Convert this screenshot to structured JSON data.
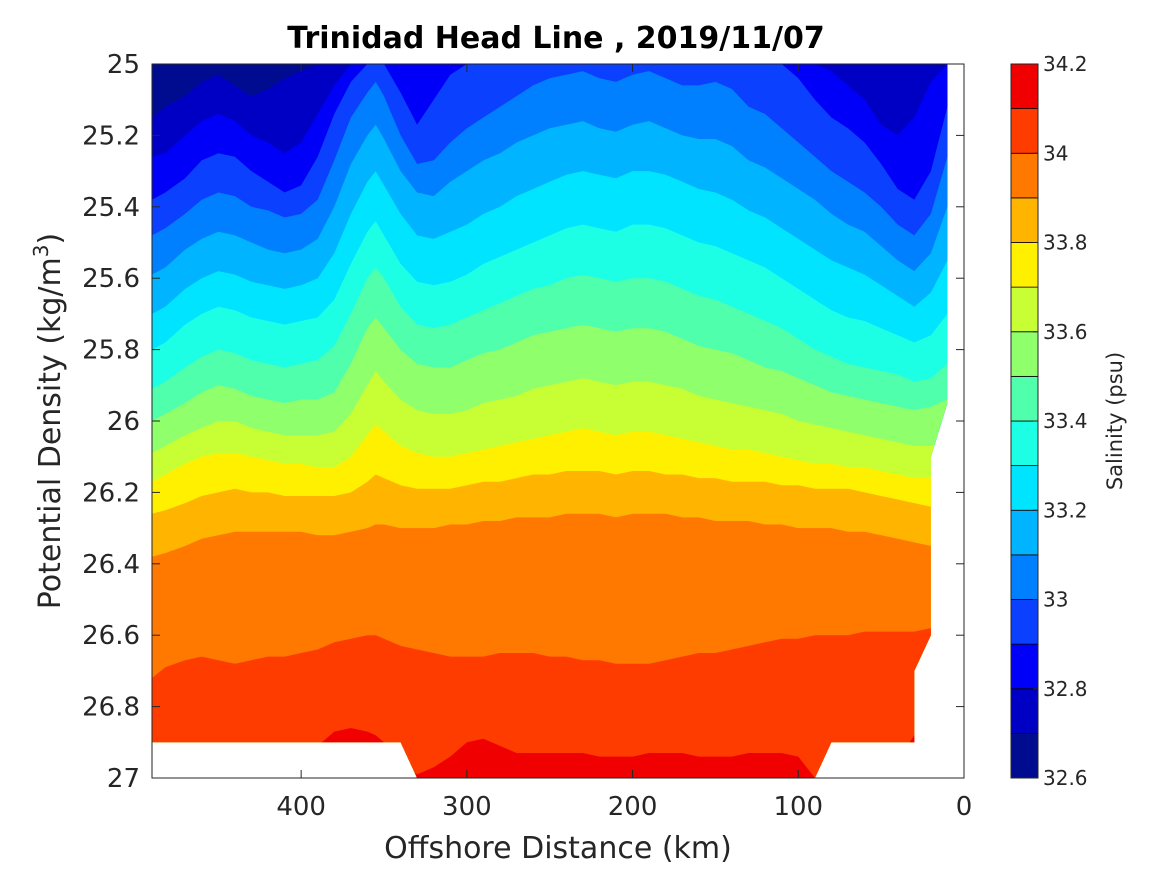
{
  "chart_data": {
    "type": "contourf",
    "title": "Trinidad Head Line , 2019/11/07",
    "xlabel": "Offshore Distance (km)",
    "ylabel": "Potential Density (kg/m",
    "ylabel_sup": "3",
    "ylabel_close": ")",
    "xlim": [
      490,
      0
    ],
    "x_reversed": true,
    "ylim": [
      25,
      27
    ],
    "y_reversed": true,
    "x_ticks": [
      400,
      300,
      200,
      100,
      0
    ],
    "y_ticks": [
      25,
      25.2,
      25.4,
      25.6,
      25.8,
      26,
      26.2,
      26.4,
      26.6,
      26.8,
      27
    ],
    "y_tick_labels": [
      "25",
      "25.2",
      "25.4",
      "25.6",
      "25.8",
      "26",
      "26.2",
      "26.4",
      "26.6",
      "26.8",
      "27"
    ],
    "x_tick_labels": [
      "400",
      "300",
      "200",
      "100",
      "0"
    ],
    "colorbar": {
      "label": "Salinity (psu)",
      "min": 32.6,
      "max": 34.2,
      "ticks": [
        "32.6",
        "32.8",
        "33",
        "33.2",
        "33.4",
        "33.6",
        "33.8",
        "34",
        "34.2"
      ],
      "levels": [
        32.6,
        32.7,
        32.8,
        32.9,
        33.0,
        33.1,
        33.2,
        33.3,
        33.4,
        33.5,
        33.6,
        33.7,
        33.8,
        33.9,
        34.0,
        34.1,
        34.2
      ],
      "colors": [
        "#000c8f",
        "#0000c4",
        "#0000f8",
        "#0c40ff",
        "#0080ff",
        "#00b4ff",
        "#00e4ff",
        "#1cffe4",
        "#50ffac",
        "#90ff6c",
        "#c8ff34",
        "#fff000",
        "#ffb400",
        "#ff7800",
        "#ff3c00",
        "#f00000",
        "#b00000"
      ]
    },
    "contour_boundaries": {
      "x": [
        490,
        482,
        470,
        460,
        450,
        440,
        430,
        420,
        410,
        400,
        390,
        380,
        370,
        360,
        355,
        350,
        340,
        330,
        320,
        310,
        300,
        290,
        280,
        270,
        260,
        250,
        240,
        230,
        220,
        210,
        200,
        190,
        180,
        170,
        160,
        150,
        140,
        130,
        120,
        110,
        100,
        90,
        80,
        70,
        60,
        50,
        40,
        30,
        20,
        10
      ],
      "levels": [
        {
          "v": 32.7,
          "d": [
            25.15,
            25.12,
            25.09,
            25.05,
            25.03,
            25.06,
            25.09,
            25.07,
            25.04,
            25.02,
            25.0,
            25.0,
            25.0,
            25.0,
            25.0,
            25.0,
            25.0,
            25.0,
            25.0,
            25.0,
            25.0,
            25.0,
            25.0,
            25.0,
            25.0,
            25.0,
            25.0,
            25.0,
            25.0,
            25.0,
            25.0,
            25.0,
            25.0,
            25.0,
            25.0,
            25.0,
            25.0,
            25.0,
            25.0,
            25.0,
            25.0,
            25.0,
            25.0,
            25.0,
            25.0,
            25.0,
            25.0,
            25.0,
            25.0,
            25.0
          ]
        },
        {
          "v": 32.8,
          "d": [
            25.26,
            25.25,
            25.2,
            25.16,
            25.14,
            25.16,
            25.2,
            25.22,
            25.25,
            25.22,
            25.14,
            25.06,
            25.0,
            25.0,
            25.0,
            25.0,
            25.0,
            25.0,
            25.0,
            25.0,
            25.0,
            25.0,
            25.0,
            25.0,
            25.0,
            25.0,
            25.0,
            25.0,
            25.0,
            25.0,
            25.0,
            25.0,
            25.0,
            25.0,
            25.0,
            25.0,
            25.0,
            25.0,
            25.0,
            25.0,
            25.0,
            25.0,
            25.02,
            25.06,
            25.1,
            25.17,
            25.2,
            25.15,
            25.05,
            25.0
          ]
        },
        {
          "v": 32.9,
          "d": [
            25.38,
            25.36,
            25.32,
            25.27,
            25.25,
            25.26,
            25.3,
            25.33,
            25.36,
            25.34,
            25.26,
            25.14,
            25.05,
            25.0,
            25.0,
            25.0,
            25.08,
            25.17,
            25.1,
            25.03,
            25.0,
            25.0,
            25.0,
            25.0,
            25.0,
            25.0,
            25.0,
            25.0,
            25.0,
            25.0,
            25.0,
            25.0,
            25.0,
            25.0,
            25.0,
            25.0,
            25.0,
            25.0,
            25.0,
            25.0,
            25.04,
            25.1,
            25.15,
            25.18,
            25.22,
            25.28,
            25.35,
            25.38,
            25.3,
            25.12
          ]
        },
        {
          "v": 33.0,
          "d": [
            25.48,
            25.46,
            25.42,
            25.38,
            25.36,
            25.37,
            25.4,
            25.41,
            25.43,
            25.42,
            25.38,
            25.27,
            25.15,
            25.08,
            25.05,
            25.09,
            25.2,
            25.28,
            25.27,
            25.22,
            25.18,
            25.15,
            25.12,
            25.09,
            25.06,
            25.04,
            25.03,
            25.02,
            25.04,
            25.05,
            25.03,
            25.02,
            25.04,
            25.06,
            25.06,
            25.05,
            25.07,
            25.12,
            25.14,
            25.18,
            25.22,
            25.26,
            25.3,
            25.33,
            25.36,
            25.4,
            25.45,
            25.48,
            25.42,
            25.26
          ]
        },
        {
          "v": 33.1,
          "d": [
            25.59,
            25.57,
            25.52,
            25.49,
            25.47,
            25.48,
            25.5,
            25.52,
            25.53,
            25.52,
            25.49,
            25.4,
            25.28,
            25.2,
            25.17,
            25.21,
            25.3,
            25.36,
            25.37,
            25.33,
            25.3,
            25.27,
            25.25,
            25.22,
            25.2,
            25.18,
            25.17,
            25.16,
            25.18,
            25.19,
            25.17,
            25.16,
            25.18,
            25.2,
            25.21,
            25.21,
            25.23,
            25.27,
            25.29,
            25.32,
            25.35,
            25.38,
            25.42,
            25.45,
            25.47,
            25.51,
            25.55,
            25.58,
            25.53,
            25.4
          ]
        },
        {
          "v": 33.2,
          "d": [
            25.7,
            25.68,
            25.63,
            25.6,
            25.58,
            25.59,
            25.61,
            25.62,
            25.63,
            25.62,
            25.6,
            25.53,
            25.42,
            25.33,
            25.3,
            25.34,
            25.42,
            25.48,
            25.49,
            25.47,
            25.45,
            25.42,
            25.4,
            25.37,
            25.35,
            25.33,
            25.31,
            25.3,
            25.31,
            25.32,
            25.3,
            25.3,
            25.31,
            25.33,
            25.35,
            25.36,
            25.38,
            25.41,
            25.43,
            25.46,
            25.49,
            25.52,
            25.55,
            25.57,
            25.59,
            25.62,
            25.65,
            25.68,
            25.64,
            25.55
          ]
        },
        {
          "v": 33.3,
          "d": [
            25.8,
            25.78,
            25.73,
            25.7,
            25.68,
            25.69,
            25.71,
            25.72,
            25.73,
            25.72,
            25.71,
            25.66,
            25.56,
            25.47,
            25.44,
            25.48,
            25.56,
            25.61,
            25.62,
            25.61,
            25.59,
            25.56,
            25.54,
            25.52,
            25.5,
            25.48,
            25.46,
            25.45,
            25.46,
            25.47,
            25.45,
            25.45,
            25.46,
            25.48,
            25.5,
            25.51,
            25.53,
            25.55,
            25.57,
            25.6,
            25.63,
            25.66,
            25.69,
            25.71,
            25.72,
            25.74,
            25.76,
            25.78,
            25.76,
            25.7
          ]
        },
        {
          "v": 33.4,
          "d": [
            25.91,
            25.89,
            25.85,
            25.82,
            25.8,
            25.81,
            25.83,
            25.84,
            25.85,
            25.84,
            25.83,
            25.79,
            25.7,
            25.6,
            25.57,
            25.6,
            25.68,
            25.73,
            25.74,
            25.73,
            25.71,
            25.69,
            25.67,
            25.65,
            25.63,
            25.62,
            25.6,
            25.59,
            25.6,
            25.61,
            25.6,
            25.6,
            25.61,
            25.63,
            25.65,
            25.66,
            25.68,
            25.7,
            25.72,
            25.74,
            25.77,
            25.8,
            25.82,
            25.84,
            25.85,
            25.86,
            25.87,
            25.89,
            25.88,
            25.84
          ]
        },
        {
          "v": 33.5,
          "d": [
            26.0,
            25.98,
            25.95,
            25.92,
            25.9,
            25.91,
            25.93,
            25.94,
            25.95,
            25.94,
            25.94,
            25.92,
            25.84,
            25.74,
            25.71,
            25.74,
            25.8,
            25.84,
            25.85,
            25.85,
            25.83,
            25.81,
            25.8,
            25.78,
            25.76,
            25.75,
            25.74,
            25.73,
            25.74,
            25.75,
            25.74,
            25.74,
            25.75,
            25.77,
            25.79,
            25.8,
            25.81,
            25.83,
            25.85,
            25.86,
            25.88,
            25.9,
            25.92,
            25.93,
            25.94,
            25.95,
            25.96,
            25.97,
            25.96,
            25.94
          ]
        },
        {
          "v": 33.6,
          "d": [
            26.09,
            26.07,
            26.04,
            26.02,
            26.0,
            26.0,
            26.02,
            26.03,
            26.04,
            26.04,
            26.04,
            26.03,
            25.98,
            25.9,
            25.86,
            25.89,
            25.94,
            25.97,
            25.98,
            25.98,
            25.97,
            25.95,
            25.94,
            25.93,
            25.91,
            25.9,
            25.89,
            25.88,
            25.89,
            25.9,
            25.89,
            25.89,
            25.9,
            25.91,
            25.93,
            25.94,
            25.95,
            25.96,
            25.97,
            25.98,
            26.0,
            26.01,
            26.02,
            26.03,
            26.04,
            26.05,
            26.06,
            26.07,
            26.07,
            26.05
          ]
        },
        {
          "v": 33.7,
          "d": [
            26.17,
            26.15,
            26.12,
            26.1,
            26.09,
            26.09,
            26.1,
            26.11,
            26.12,
            26.12,
            26.13,
            26.13,
            26.1,
            26.04,
            26.01,
            26.03,
            26.07,
            26.09,
            26.1,
            26.1,
            26.09,
            26.08,
            26.07,
            26.06,
            26.05,
            26.04,
            26.03,
            26.02,
            26.03,
            26.04,
            26.03,
            26.03,
            26.04,
            26.05,
            26.06,
            26.07,
            26.08,
            26.08,
            26.09,
            26.1,
            26.11,
            26.12,
            26.12,
            26.13,
            26.13,
            26.14,
            26.15,
            26.16,
            26.16,
            26.15
          ]
        },
        {
          "v": 33.8,
          "d": [
            26.26,
            26.25,
            26.23,
            26.21,
            26.2,
            26.19,
            26.2,
            26.2,
            26.21,
            26.21,
            26.21,
            26.21,
            26.2,
            26.17,
            26.15,
            26.16,
            26.18,
            26.19,
            26.19,
            26.19,
            26.18,
            26.17,
            26.17,
            26.16,
            26.15,
            26.15,
            26.14,
            26.14,
            26.14,
            26.15,
            26.14,
            26.14,
            26.15,
            26.15,
            26.16,
            26.16,
            26.17,
            26.17,
            26.17,
            26.18,
            26.18,
            26.19,
            26.19,
            26.19,
            26.2,
            26.21,
            26.22,
            26.23,
            26.24,
            26.24
          ]
        },
        {
          "v": 33.9,
          "d": [
            26.38,
            26.37,
            26.35,
            26.33,
            26.32,
            26.31,
            26.31,
            26.31,
            26.31,
            26.31,
            26.32,
            26.32,
            26.31,
            26.3,
            26.29,
            26.29,
            26.3,
            26.3,
            26.3,
            26.29,
            26.29,
            26.28,
            26.28,
            26.27,
            26.27,
            26.27,
            26.26,
            26.26,
            26.26,
            26.27,
            26.26,
            26.26,
            26.26,
            26.27,
            26.27,
            26.28,
            26.28,
            26.28,
            26.29,
            26.29,
            26.3,
            26.3,
            26.3,
            26.31,
            26.31,
            26.32,
            26.33,
            26.34,
            26.35,
            26.36
          ]
        },
        {
          "v": 34.0,
          "d": [
            26.72,
            26.69,
            26.67,
            26.66,
            26.67,
            26.68,
            26.67,
            26.66,
            26.66,
            26.65,
            26.64,
            26.62,
            26.61,
            26.6,
            26.6,
            26.61,
            26.63,
            26.64,
            26.65,
            26.66,
            26.66,
            26.66,
            26.65,
            26.65,
            26.65,
            26.66,
            26.66,
            26.67,
            26.67,
            26.68,
            26.68,
            26.68,
            26.67,
            26.66,
            26.65,
            26.65,
            26.64,
            26.63,
            26.62,
            26.61,
            26.61,
            26.6,
            26.6,
            26.6,
            26.59,
            26.59,
            26.59,
            26.59,
            26.58,
            26.58
          ]
        },
        {
          "v": 34.1,
          "d": [
            27.0,
            27.0,
            27.0,
            27.0,
            27.0,
            27.0,
            27.0,
            27.0,
            27.0,
            26.96,
            26.91,
            26.87,
            26.86,
            26.87,
            26.88,
            26.9,
            26.96,
            26.99,
            26.97,
            26.94,
            26.9,
            26.89,
            26.91,
            26.93,
            26.93,
            26.93,
            26.93,
            26.93,
            26.94,
            26.94,
            26.94,
            26.93,
            26.93,
            26.93,
            26.94,
            26.94,
            26.94,
            26.93,
            26.93,
            26.93,
            26.94,
            27.0,
            27.0,
            27.0,
            27.0,
            27.0,
            26.95,
            26.88,
            26.83,
            26.8
          ]
        }
      ]
    }
  }
}
